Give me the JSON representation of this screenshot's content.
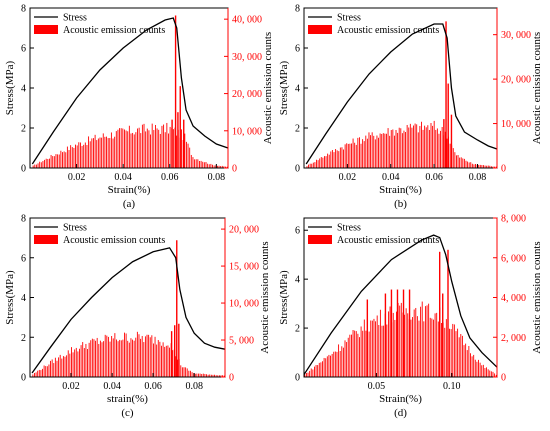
{
  "style": {
    "stress_color": "#000000",
    "ae_color": "#ff0000",
    "ae_axis_color": "#ff0000"
  },
  "chart_data": [
    {
      "type": "bar",
      "panel_label": "(a)",
      "xlabel": "Strain(%)",
      "ylabel": "Stress(MPa)",
      "y2label": "Acoustic emission counts",
      "xlim": [
        0,
        0.085
      ],
      "xticks": [
        0.02,
        0.04,
        0.06,
        0.08
      ],
      "xtick_labels": [
        "0.02",
        "0.04",
        "0.06",
        "0.08"
      ],
      "ylim": [
        0,
        8
      ],
      "yticks": [
        0,
        2,
        4,
        6,
        8
      ],
      "y2lim": [
        0,
        43000
      ],
      "y2ticks": [
        0,
        10000,
        20000,
        30000,
        40000
      ],
      "y2tick_labels": [
        "0",
        "10, 000",
        "20, 000",
        "30, 000",
        "40, 000"
      ],
      "legend": {
        "position": "top-left",
        "entries": [
          "Stress",
          "Acoustic emission counts"
        ]
      },
      "stress": {
        "name": "Stress",
        "x": [
          0.001,
          0.01,
          0.02,
          0.03,
          0.04,
          0.05,
          0.058,
          0.0615,
          0.063,
          0.065,
          0.067,
          0.07,
          0.075,
          0.08,
          0.085
        ],
        "y": [
          0.2,
          1.8,
          3.5,
          4.9,
          6.0,
          6.9,
          7.4,
          7.5,
          7.0,
          4.5,
          2.9,
          2.1,
          1.6,
          1.2,
          1.0
        ]
      },
      "ae": {
        "name": "Acoustic emission counts",
        "envelope": {
          "x": [
            0.001,
            0.01,
            0.02,
            0.03,
            0.04,
            0.05,
            0.06,
            0.066,
            0.07,
            0.078,
            0.085
          ],
          "y": [
            500,
            3500,
            6500,
            8600,
            10000,
            10800,
            10900,
            9000,
            3000,
            900,
            300
          ]
        },
        "spikes": [
          {
            "x": 0.061,
            "y": 13000
          },
          {
            "x": 0.0625,
            "y": 41000
          },
          {
            "x": 0.0635,
            "y": 15000
          },
          {
            "x": 0.0645,
            "y": 22000
          },
          {
            "x": 0.066,
            "y": 13000
          }
        ]
      }
    },
    {
      "type": "bar",
      "panel_label": "(b)",
      "xlabel": "Strain(%)",
      "ylabel": "Stress(MPa)",
      "y2label": "Acoustic emission counts",
      "xlim": [
        0,
        0.089
      ],
      "xticks": [
        0.02,
        0.04,
        0.06,
        0.08
      ],
      "xtick_labels": [
        "0.02",
        "0.04",
        "0.06",
        "0.08"
      ],
      "ylim": [
        0,
        8
      ],
      "yticks": [
        0,
        2,
        4,
        6,
        8
      ],
      "y2lim": [
        0,
        36000
      ],
      "y2ticks": [
        0,
        10000,
        20000,
        30000
      ],
      "y2tick_labels": [
        "0",
        "10, 000",
        "20, 000",
        "30, 000"
      ],
      "legend": {
        "position": "top-left",
        "entries": [
          "Stress",
          "Acoustic emission counts"
        ]
      },
      "stress": {
        "name": "Stress",
        "x": [
          0.001,
          0.01,
          0.02,
          0.03,
          0.04,
          0.05,
          0.06,
          0.064,
          0.066,
          0.068,
          0.07,
          0.074,
          0.08,
          0.085,
          0.089
        ],
        "y": [
          0.2,
          1.7,
          3.3,
          4.7,
          5.8,
          6.7,
          7.2,
          7.2,
          6.5,
          4.0,
          2.6,
          1.8,
          1.4,
          1.1,
          0.95
        ]
      },
      "ae": {
        "name": "Acoustic emission counts",
        "envelope": {
          "x": [
            0.001,
            0.01,
            0.02,
            0.03,
            0.04,
            0.05,
            0.06,
            0.066,
            0.07,
            0.078,
            0.089
          ],
          "y": [
            400,
            3000,
            5500,
            7300,
            8600,
            9400,
            9600,
            8000,
            3000,
            900,
            300
          ]
        },
        "spikes": [
          {
            "x": 0.0645,
            "y": 11000
          },
          {
            "x": 0.0655,
            "y": 33000
          },
          {
            "x": 0.0665,
            "y": 19000
          },
          {
            "x": 0.068,
            "y": 12000
          }
        ]
      }
    },
    {
      "type": "bar",
      "panel_label": "(c)",
      "xlabel": "strain(%)",
      "ylabel": "Stress(MPa)",
      "y2label": "Acoustic emission counts",
      "xlim": [
        0,
        0.095
      ],
      "xticks": [
        0.02,
        0.04,
        0.06,
        0.08
      ],
      "xtick_labels": [
        "0.02",
        "0.04",
        "0.06",
        "0.08"
      ],
      "ylim": [
        0,
        8
      ],
      "yticks": [
        0,
        2,
        4,
        6,
        8
      ],
      "y2lim": [
        0,
        21500
      ],
      "y2ticks": [
        0,
        5000,
        10000,
        15000,
        20000
      ],
      "y2tick_labels": [
        "0",
        "5, 000",
        "10, 000",
        "15, 000",
        "20, 000"
      ],
      "legend": {
        "position": "top-left",
        "entries": [
          "Stress",
          "Acoustic emission counts"
        ]
      },
      "stress": {
        "name": "Stress",
        "x": [
          0.001,
          0.01,
          0.02,
          0.03,
          0.04,
          0.05,
          0.06,
          0.068,
          0.071,
          0.073,
          0.076,
          0.08,
          0.085,
          0.09,
          0.095
        ],
        "y": [
          0.2,
          1.5,
          2.9,
          4.0,
          5.0,
          5.8,
          6.3,
          6.5,
          6.0,
          4.4,
          3.0,
          2.2,
          1.7,
          1.5,
          1.4
        ]
      },
      "ae": {
        "name": "Acoustic emission counts",
        "envelope": {
          "x": [
            0.001,
            0.01,
            0.02,
            0.03,
            0.04,
            0.05,
            0.06,
            0.068,
            0.074,
            0.08,
            0.095
          ],
          "y": [
            300,
            2000,
            3700,
            4800,
            5400,
            5600,
            5300,
            4800,
            1500,
            500,
            200
          ]
        },
        "spikes": [
          {
            "x": 0.069,
            "y": 6200
          },
          {
            "x": 0.0705,
            "y": 7000
          },
          {
            "x": 0.0715,
            "y": 18500
          },
          {
            "x": 0.0725,
            "y": 7200
          }
        ]
      }
    },
    {
      "type": "bar",
      "panel_label": "(d)",
      "xlabel": "Strain(%)",
      "ylabel": "Stress(MPa)",
      "y2label": "Acoustic emission counts",
      "xlim": [
        0.002,
        0.13
      ],
      "xticks": [
        0.05,
        0.1
      ],
      "xtick_labels": [
        "0.05",
        "0.10"
      ],
      "ylim": [
        0,
        6.5
      ],
      "yticks": [
        0,
        2,
        4,
        6
      ],
      "y2lim": [
        0,
        8000
      ],
      "y2ticks": [
        0,
        2000,
        4000,
        6000,
        8000
      ],
      "y2tick_labels": [
        "0",
        "2, 000",
        "4, 000",
        "6, 000",
        "8, 000"
      ],
      "legend": {
        "position": "top-left",
        "entries": [
          "Stress",
          "Acoustic emission counts"
        ]
      },
      "stress": {
        "name": "Stress",
        "x": [
          0.002,
          0.02,
          0.04,
          0.06,
          0.08,
          0.088,
          0.092,
          0.096,
          0.1,
          0.106,
          0.112,
          0.12,
          0.13
        ],
        "y": [
          0.1,
          1.8,
          3.5,
          4.8,
          5.6,
          5.8,
          5.7,
          5.0,
          3.9,
          2.5,
          1.6,
          1.0,
          0.4
        ]
      },
      "ae": {
        "name": "Acoustic emission counts",
        "envelope": {
          "x": [
            0.002,
            0.02,
            0.04,
            0.05,
            0.06,
            0.075,
            0.09,
            0.1,
            0.11,
            0.12,
            0.13
          ],
          "y": [
            100,
            1200,
            2500,
            3000,
            3300,
            3500,
            3300,
            2600,
            1600,
            600,
            100
          ]
        },
        "spikes": [
          {
            "x": 0.044,
            "y": 3900
          },
          {
            "x": 0.056,
            "y": 4200
          },
          {
            "x": 0.06,
            "y": 4400
          },
          {
            "x": 0.064,
            "y": 4400
          },
          {
            "x": 0.068,
            "y": 4400
          },
          {
            "x": 0.072,
            "y": 4400
          },
          {
            "x": 0.092,
            "y": 6300
          },
          {
            "x": 0.094,
            "y": 4200
          },
          {
            "x": 0.0975,
            "y": 6400
          }
        ]
      }
    }
  ]
}
